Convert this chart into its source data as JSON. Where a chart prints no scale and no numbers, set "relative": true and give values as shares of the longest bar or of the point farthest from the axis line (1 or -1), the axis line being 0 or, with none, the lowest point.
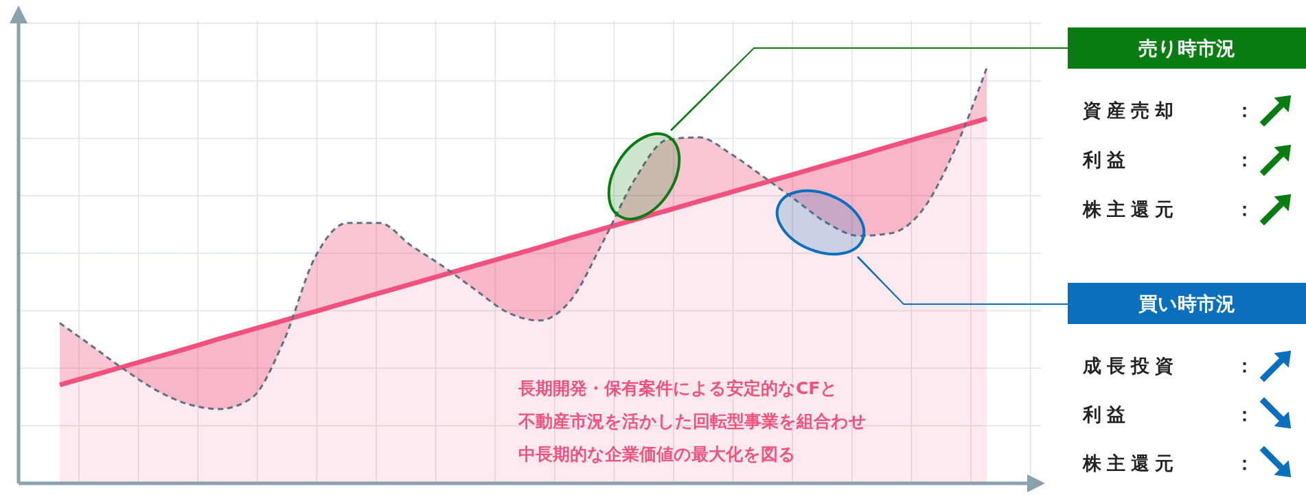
{
  "chart_data": {
    "type": "line",
    "relative": true,
    "grid": true,
    "categories": [
      null,
      null,
      null,
      null,
      null,
      null,
      null,
      null,
      null,
      null,
      null,
      null,
      null,
      null,
      null,
      null,
      null,
      null,
      null,
      null,
      null,
      null,
      null,
      null,
      null,
      null,
      null,
      null,
      null,
      null
    ],
    "series": [
      {
        "type": "area",
        "color": "#f0527d",
        "values": [
          0.237,
          0.259,
          0.281,
          0.303,
          0.325,
          0.348,
          0.37,
          0.392,
          0.414,
          0.436,
          0.458,
          0.48,
          0.502,
          0.524,
          0.546,
          0.568,
          0.591,
          0.613,
          0.635,
          0.657,
          0.679,
          0.701,
          0.723,
          0.745,
          0.767,
          0.789,
          0.812,
          0.834,
          0.856,
          0.878
        ]
      },
      {
        "type": "line",
        "color": "#5d7180",
        "line_style": "dashed",
        "values": [
          0.386,
          0.331,
          0.275,
          0.225,
          0.191,
          0.179,
          0.205,
          0.341,
          0.546,
          0.627,
          0.627,
          0.572,
          0.522,
          0.466,
          0.412,
          0.392,
          0.442,
          0.582,
          0.733,
          0.827,
          0.833,
          0.793,
          0.739,
          0.683,
          0.627,
          0.596,
          0.602,
          0.659,
          0.803,
          1
        ]
      }
    ],
    "annotations": [
      "売り時市況",
      "資産売却：",
      "利益：",
      "株主還元：",
      "買い時市況",
      "成長投資：",
      "利益：",
      "株主還元：",
      "長期開発・保有案件による安定的なCFと",
      "不動産市況を活かした回転型事業を組合わせ",
      "中長期的な企業価値の最大化を図る"
    ]
  }
}
